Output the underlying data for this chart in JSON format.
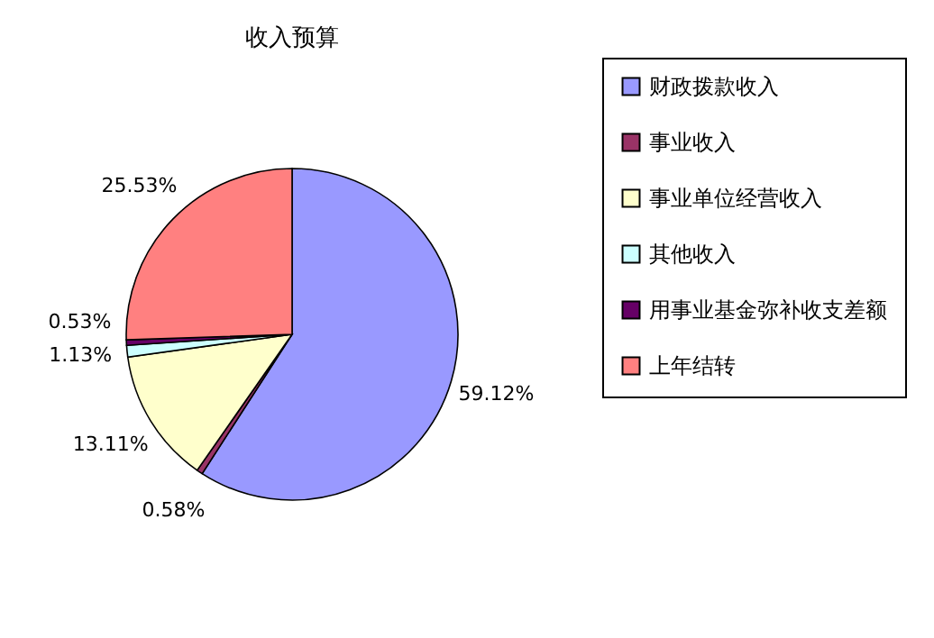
{
  "chart_data": {
    "type": "pie",
    "title": "收入预算",
    "categories": [
      "财政拨款收入",
      "事业收入",
      "事业单位经营收入",
      "其他收入",
      "用事业基金弥补收支差额",
      "上年结转"
    ],
    "values": [
      59.12,
      0.58,
      13.11,
      1.13,
      0.53,
      25.53
    ],
    "value_labels": [
      "59.12%",
      "0.58%",
      "13.11%",
      "1.13%",
      "0.53%",
      "25.53%"
    ],
    "colors": [
      "#9999ff",
      "#993366",
      "#ffffcc",
      "#ccffff",
      "#660066",
      "#ff8080"
    ],
    "legend": "right"
  }
}
